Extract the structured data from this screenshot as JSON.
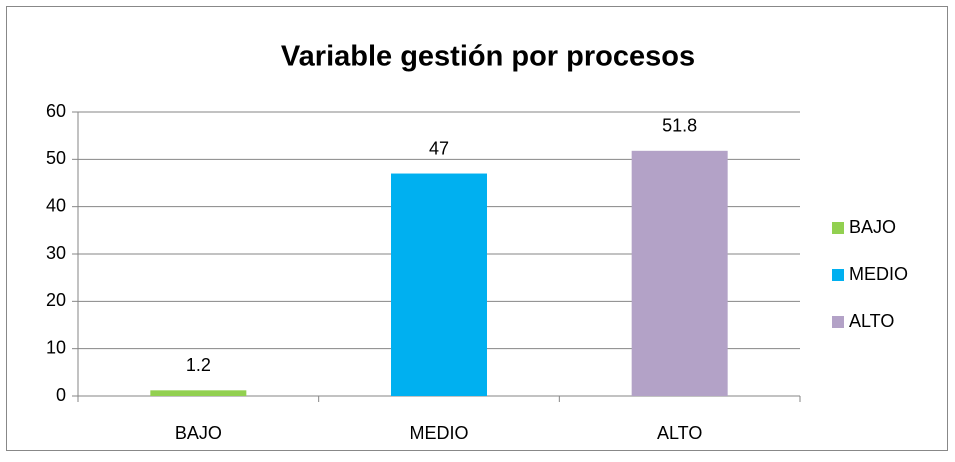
{
  "chart_data": {
    "type": "bar",
    "title": "Variable gestión por procesos",
    "categories": [
      "BAJO",
      "MEDIO",
      "ALTO"
    ],
    "values": [
      1.2,
      47,
      51.8
    ],
    "colors": [
      "#92d050",
      "#00b0f0",
      "#b3a2c7"
    ],
    "ylim": [
      0,
      60
    ],
    "yticks": [
      0,
      10,
      20,
      30,
      40,
      50,
      60
    ],
    "grid": true,
    "legend": "right"
  }
}
